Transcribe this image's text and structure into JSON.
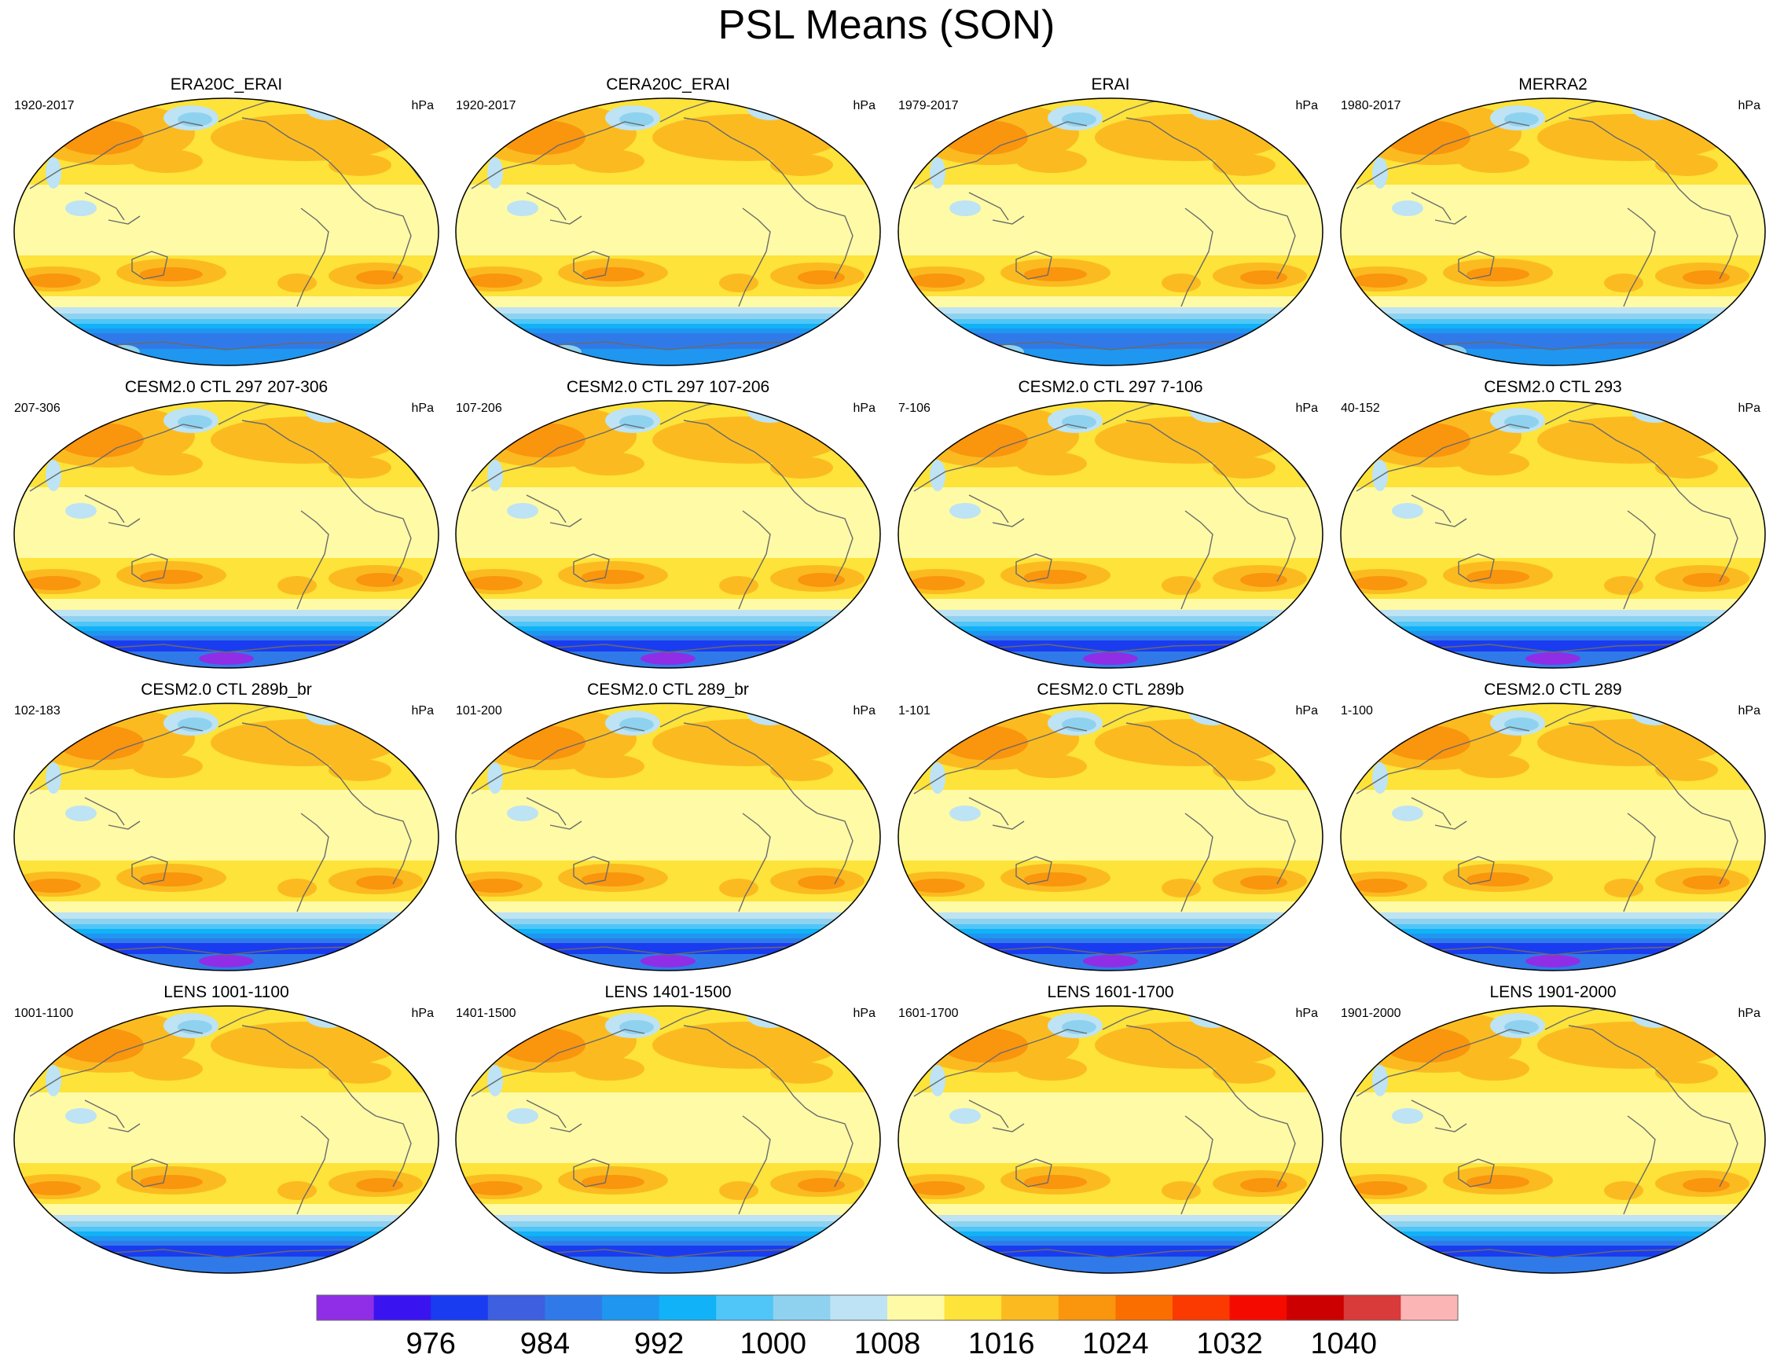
{
  "title": "PSL Means (SON)",
  "panels": [
    {
      "title": "ERA20C_ERAI",
      "left": "1920-2017",
      "right": "hPa",
      "variant": "obs"
    },
    {
      "title": "CERA20C_ERAI",
      "left": "1920-2017",
      "right": "hPa",
      "variant": "obs"
    },
    {
      "title": "ERAI",
      "left": "1979-2017",
      "right": "hPa",
      "variant": "obs"
    },
    {
      "title": "MERRA2",
      "left": "1980-2017",
      "right": "hPa",
      "variant": "obs"
    },
    {
      "title": "CESM2.0 CTL 297 207-306",
      "left": "207-306",
      "right": "hPa",
      "variant": "model"
    },
    {
      "title": "CESM2.0 CTL 297 107-206",
      "left": "107-206",
      "right": "hPa",
      "variant": "model"
    },
    {
      "title": "CESM2.0 CTL 297 7-106",
      "left": "7-106",
      "right": "hPa",
      "variant": "model"
    },
    {
      "title": "CESM2.0 CTL 293",
      "left": "40-152",
      "right": "hPa",
      "variant": "model"
    },
    {
      "title": "CESM2.0 CTL 289b_br",
      "left": "102-183",
      "right": "hPa",
      "variant": "model"
    },
    {
      "title": "CESM2.0 CTL 289_br",
      "left": "101-200",
      "right": "hPa",
      "variant": "model"
    },
    {
      "title": "CESM2.0 CTL 289b",
      "left": "1-101",
      "right": "hPa",
      "variant": "model"
    },
    {
      "title": "CESM2.0 CTL 289",
      "left": "1-100",
      "right": "hPa",
      "variant": "model"
    },
    {
      "title": "LENS 1001-1100",
      "left": "1001-1100",
      "right": "hPa",
      "variant": "lens"
    },
    {
      "title": "LENS 1401-1500",
      "left": "1401-1500",
      "right": "hPa",
      "variant": "lens"
    },
    {
      "title": "LENS 1601-1700",
      "left": "1601-1700",
      "right": "hPa",
      "variant": "lens"
    },
    {
      "title": "LENS 1901-2000",
      "left": "1901-2000",
      "right": "hPa",
      "variant": "lens"
    }
  ],
  "colorbar": {
    "colors": [
      "#8f2ee6",
      "#3a14f0",
      "#1a3cf0",
      "#3d5fe0",
      "#2f7ae8",
      "#1f96f0",
      "#11b2f7",
      "#4fc6f7",
      "#8fd2ef",
      "#bde3f4",
      "#fffaa6",
      "#fde33a",
      "#fbbb20",
      "#fa950e",
      "#fa6e00",
      "#fa3a00",
      "#f50a00",
      "#cc0000",
      "#d93a3a",
      "#fbb5b5"
    ],
    "labels": [
      "976",
      "984",
      "992",
      "1000",
      "1008",
      "1016",
      "1024",
      "1032",
      "1040"
    ]
  },
  "chart_data": {
    "type": "heatmap",
    "title": "PSL Means (SON)",
    "units": "hPa",
    "contour_levels": [
      972,
      976,
      980,
      984,
      988,
      992,
      996,
      1000,
      1004,
      1008,
      1012,
      1016,
      1020,
      1024,
      1028,
      1032,
      1036,
      1040,
      1044
    ],
    "panels": [
      "ERA20C_ERAI",
      "CERA20C_ERAI",
      "ERAI",
      "MERRA2",
      "CESM2.0 CTL 297 207-306",
      "CESM2.0 CTL 297 107-206",
      "CESM2.0 CTL 297 7-106",
      "CESM2.0 CTL 293",
      "CESM2.0 CTL 289b_br",
      "CESM2.0 CTL 289_br",
      "CESM2.0 CTL 289b",
      "CESM2.0 CTL 289",
      "LENS 1001-1100",
      "LENS 1401-1500",
      "LENS 1601-1700",
      "LENS 1901-2000"
    ]
  }
}
